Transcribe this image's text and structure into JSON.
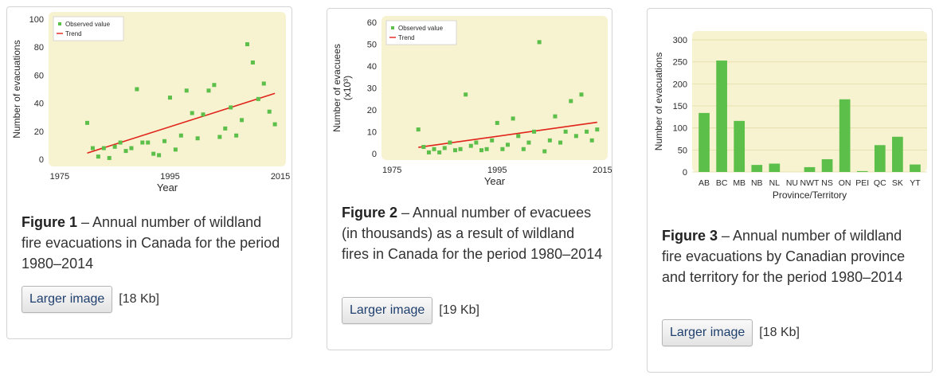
{
  "figures": [
    {
      "caption_bold": "Figure 1",
      "caption_text": " – Annual number of wildland fire evacuations in Canada for the period 1980–2014",
      "button_label": "Larger image",
      "size_label": "[18 Kb]"
    },
    {
      "caption_bold": "Figure 2",
      "caption_text": " – Annual number of evacuees (in thousands) as a result of wildland fires in Canada for the period 1980–2014",
      "button_label": "Larger image",
      "size_label": "[19 Kb]"
    },
    {
      "caption_bold": "Figure 3",
      "caption_text": " – Annual number of wildland fire evacuations by Canadian province and territory for the period 1980–2014",
      "button_label": "Larger image",
      "size_label": "[18 Kb]"
    }
  ],
  "colors": {
    "plot_bg": "#f7f2cf",
    "point": "#5cbf4a",
    "bar": "#5cbf4a",
    "trend": "#e0241b"
  },
  "chart_data": [
    {
      "type": "scatter",
      "title": "",
      "xlabel": "Year",
      "ylabel": "Number of evacuations",
      "xlim": [
        1973,
        2016
      ],
      "ylim": [
        -5,
        105
      ],
      "xticks": [
        1975,
        1995,
        2015
      ],
      "yticks": [
        0,
        20,
        40,
        60,
        80,
        100
      ],
      "legend": [
        "Observed value",
        "Trend"
      ],
      "legend_position": "top-left",
      "series": [
        {
          "name": "Observed value",
          "x": [
            1980,
            1981,
            1982,
            1983,
            1984,
            1985,
            1986,
            1987,
            1988,
            1989,
            1990,
            1991,
            1992,
            1993,
            1994,
            1995,
            1996,
            1997,
            1998,
            1999,
            2000,
            2001,
            2002,
            2003,
            2004,
            2005,
            2006,
            2007,
            2008,
            2009,
            2010,
            2011,
            2012,
            2013,
            2014
          ],
          "values": [
            26,
            8,
            2,
            8,
            1,
            9,
            12,
            6,
            8,
            50,
            12,
            12,
            4,
            3,
            13,
            44,
            7,
            17,
            49,
            33,
            15,
            32,
            49,
            53,
            16,
            22,
            37,
            17,
            28,
            82,
            69,
            43,
            54,
            34,
            25
          ]
        },
        {
          "name": "Trend",
          "x": [
            1980,
            2014
          ],
          "values": [
            4.5,
            47
          ]
        }
      ]
    },
    {
      "type": "scatter",
      "title": "",
      "xlabel": "Year",
      "ylabel": "Number of evacuees",
      "ylabel2": "(x10³)",
      "xlim": [
        1973,
        2016
      ],
      "ylim": [
        -3,
        63
      ],
      "xticks": [
        1975,
        1995,
        2015
      ],
      "yticks": [
        0,
        10,
        20,
        30,
        40,
        50,
        60
      ],
      "legend": [
        "Observed value",
        "Trend"
      ],
      "legend_position": "top-left",
      "series": [
        {
          "name": "Observed value",
          "x": [
            1980,
            1981,
            1982,
            1983,
            1984,
            1985,
            1986,
            1987,
            1988,
            1989,
            1990,
            1991,
            1992,
            1993,
            1994,
            1995,
            1996,
            1997,
            1998,
            1999,
            2000,
            2001,
            2002,
            2003,
            2004,
            2005,
            2006,
            2007,
            2008,
            2009,
            2010,
            2011,
            2012,
            2013,
            2014
          ],
          "values": [
            11,
            3,
            0.5,
            2,
            0.5,
            2.5,
            5,
            1.5,
            2,
            27,
            3.5,
            5,
            1.5,
            2,
            6,
            14,
            2,
            4,
            16,
            8,
            2,
            5,
            10,
            51,
            1,
            6,
            17,
            5,
            10,
            24,
            8,
            27,
            10,
            6,
            11
          ]
        },
        {
          "name": "Trend",
          "x": [
            1980,
            2014
          ],
          "values": [
            2.8,
            14.3
          ]
        }
      ]
    },
    {
      "type": "bar",
      "title": "",
      "xlabel": "Province/Territory",
      "ylabel": "Number of evacuations",
      "ylim": [
        0,
        320
      ],
      "yticks": [
        0,
        50,
        100,
        150,
        200,
        250,
        300
      ],
      "categories": [
        "AB",
        "BC",
        "MB",
        "NB",
        "NL",
        "NU",
        "NWT",
        "NS",
        "ON",
        "PEI",
        "QC",
        "SK",
        "YT"
      ],
      "values": [
        134,
        253,
        116,
        16,
        19,
        0,
        11,
        29,
        165,
        2,
        61,
        80,
        17
      ]
    }
  ]
}
